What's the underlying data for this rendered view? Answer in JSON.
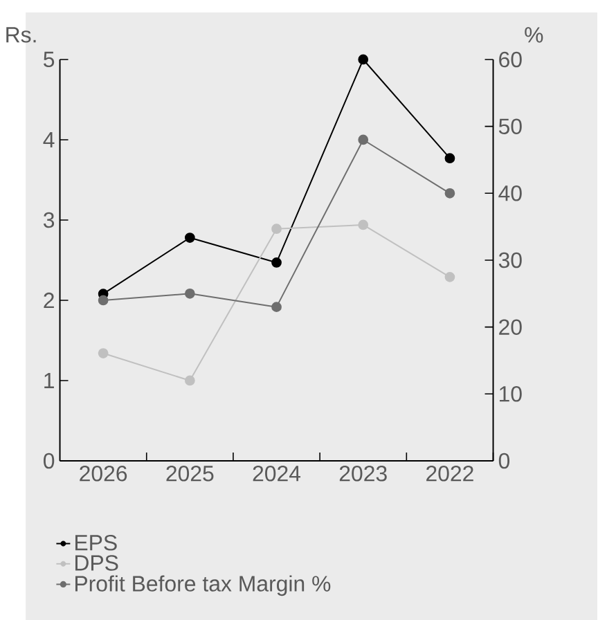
{
  "chart_data": {
    "type": "line",
    "ylabel": "Rs.",
    "y2label": "%",
    "categories": [
      "2026",
      "2025",
      "2024",
      "2023",
      "2022"
    ],
    "series": [
      {
        "name": "EPS",
        "color": "#000000",
        "values": [
          2.08,
          2.78,
          2.47,
          5.0,
          3.77
        ]
      },
      {
        "name": "DPS",
        "color": "#c0c0c0",
        "values": [
          1.34,
          1.0,
          2.89,
          2.94,
          2.29
        ]
      },
      {
        "name": "Profit Before tax Margin %",
        "color": "#6e6e6e",
        "axis": "y2",
        "values": [
          24,
          25,
          23,
          48,
          40
        ]
      }
    ],
    "ylim": [
      0,
      5
    ],
    "yticks": [
      0,
      1,
      2,
      3,
      4,
      5
    ],
    "y2lim": [
      0,
      60
    ],
    "y2ticks": [
      0,
      10,
      20,
      30,
      40,
      50,
      60
    ],
    "marker": "circle",
    "line_style": "solid",
    "grid": false,
    "legend": "bottom left"
  }
}
